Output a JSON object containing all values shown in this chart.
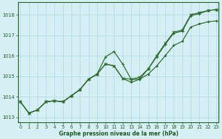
{
  "bg_color": "#d6eff5",
  "grid_color": "#b8dde6",
  "line_color": "#2d6a2d",
  "xlabel": "Graphe pression niveau de la mer (hPa)",
  "xlabel_color": "#1a5c1a",
  "tick_color": "#1a5c1a",
  "yticks": [
    1013,
    1014,
    1015,
    1016,
    1017,
    1018
  ],
  "xticks": [
    0,
    1,
    2,
    3,
    4,
    5,
    6,
    7,
    8,
    9,
    10,
    11,
    12,
    13,
    14,
    15,
    16,
    17,
    18,
    19,
    20,
    21,
    22,
    23
  ],
  "xlim": [
    -0.3,
    23.3
  ],
  "ylim": [
    1012.75,
    1018.6
  ],
  "series1_y": [
    1013.75,
    1013.2,
    1013.35,
    1013.75,
    1013.8,
    1013.75,
    1014.05,
    1014.35,
    1014.85,
    1015.1,
    1015.95,
    1016.2,
    1015.6,
    1014.85,
    1014.85,
    1015.35,
    1015.95,
    1016.55,
    1017.1,
    1017.2,
    1017.95,
    1018.05,
    1018.2,
    1018.25
  ],
  "series2_y": [
    1013.75,
    1013.2,
    1013.35,
    1013.75,
    1013.8,
    1013.75,
    1014.05,
    1014.35,
    1014.85,
    1015.1,
    1015.6,
    1015.5,
    1014.9,
    1014.85,
    1014.95,
    1015.35,
    1016.0,
    1016.6,
    1017.15,
    1017.25,
    1018.0,
    1018.1,
    1018.2,
    1018.25
  ],
  "series3_y": [
    1013.75,
    1013.2,
    1013.35,
    1013.75,
    1013.8,
    1013.75,
    1014.05,
    1014.35,
    1014.85,
    1015.1,
    1015.6,
    1015.5,
    1014.9,
    1014.7,
    1014.85,
    1015.1,
    1015.5,
    1016.0,
    1016.5,
    1016.7,
    1017.4,
    1017.55,
    1017.65,
    1017.7
  ]
}
